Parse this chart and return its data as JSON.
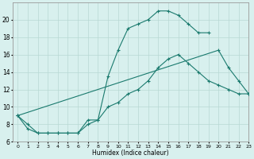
{
  "xlabel": "Humidex (Indice chaleur)",
  "line_color": "#1a7a6e",
  "bg_color": "#d8f0ee",
  "grid_color": "#b8d8d4",
  "lines": [
    {
      "x": [
        0,
        1,
        2,
        3,
        4,
        5,
        6,
        7,
        8,
        9,
        10,
        11,
        12,
        13,
        14,
        15,
        16,
        17,
        18,
        19,
        20,
        21,
        22,
        23
      ],
      "y": [
        9,
        7.5,
        7,
        7,
        7,
        7,
        7,
        8.5,
        8.5,
        13.5,
        16.5,
        19,
        19.5,
        20,
        21,
        21,
        20.5,
        19.5,
        18.5,
        18.5,
        null,
        null,
        null,
        null
      ]
    },
    {
      "x": [
        0,
        1,
        2,
        3,
        4,
        5,
        6,
        7,
        8,
        9,
        10,
        11,
        12,
        13,
        14,
        15,
        16,
        17,
        18,
        19,
        20,
        21,
        22,
        23
      ],
      "y": [
        9,
        8,
        7,
        7,
        7,
        7,
        7,
        8,
        8.5,
        10,
        10.5,
        11.5,
        12,
        13,
        14.5,
        15.5,
        16,
        15,
        14,
        13,
        12.5,
        12,
        11.5,
        11.5
      ]
    },
    {
      "x": [
        0,
        20,
        21,
        22,
        23
      ],
      "y": [
        9,
        16.5,
        14.5,
        13,
        11.5
      ]
    }
  ],
  "ylim": [
    6,
    22
  ],
  "xlim": [
    -0.5,
    23
  ],
  "yticks": [
    6,
    8,
    10,
    12,
    14,
    16,
    18,
    20
  ],
  "xticks": [
    0,
    1,
    2,
    3,
    4,
    5,
    6,
    7,
    8,
    9,
    10,
    11,
    12,
    13,
    14,
    15,
    16,
    17,
    18,
    19,
    20,
    21,
    22,
    23
  ],
  "xtick_labels": [
    "0",
    "1",
    "2",
    "3",
    "4",
    "5",
    "6",
    "7",
    "8",
    "9",
    "10",
    "11",
    "12",
    "13",
    "14",
    "15",
    "16",
    "17",
    "18",
    "19",
    "20",
    "21",
    "22",
    "23"
  ]
}
